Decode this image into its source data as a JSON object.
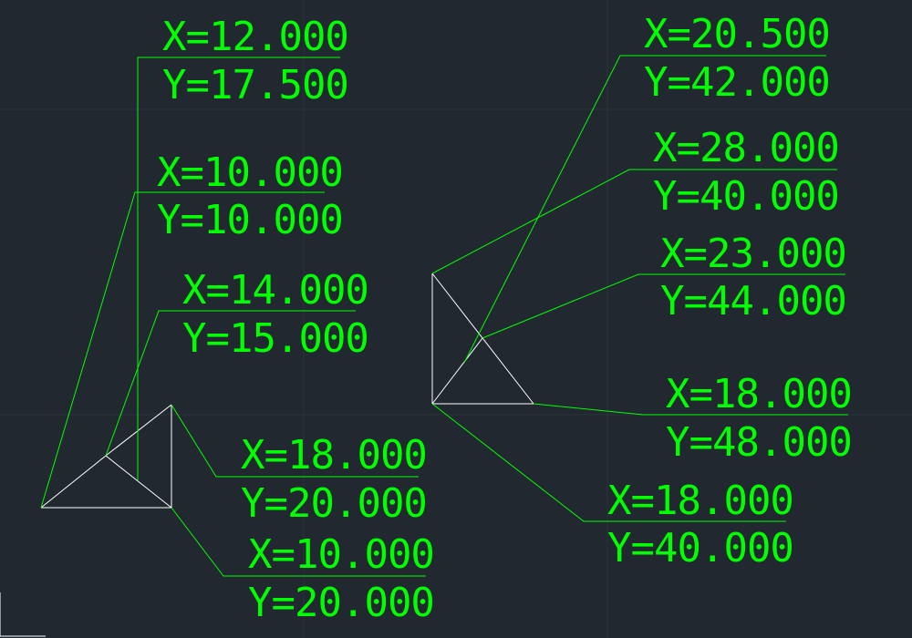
{
  "colors": {
    "background": "#212830",
    "leader": "#00ff00",
    "text": "#00ff00",
    "geometry": "#ffffff",
    "grid": "#2b323b"
  },
  "left_group": {
    "labels": [
      {
        "x_text": "X=12.000",
        "y_text": "Y=17.500"
      },
      {
        "x_text": "X=10.000",
        "y_text": "Y=10.000"
      },
      {
        "x_text": "X=14.000",
        "y_text": "Y=15.000"
      },
      {
        "x_text": "X=18.000",
        "y_text": "Y=20.000"
      },
      {
        "x_text": "X=10.000",
        "y_text": "Y=20.000"
      }
    ]
  },
  "right_group": {
    "labels": [
      {
        "x_text": "X=20.500",
        "y_text": "Y=42.000"
      },
      {
        "x_text": "X=28.000",
        "y_text": "Y=40.000"
      },
      {
        "x_text": "X=23.000",
        "y_text": "Y=44.000"
      },
      {
        "x_text": "X=18.000",
        "y_text": "Y=48.000"
      },
      {
        "x_text": "X=18.000",
        "y_text": "Y=40.000"
      }
    ]
  }
}
